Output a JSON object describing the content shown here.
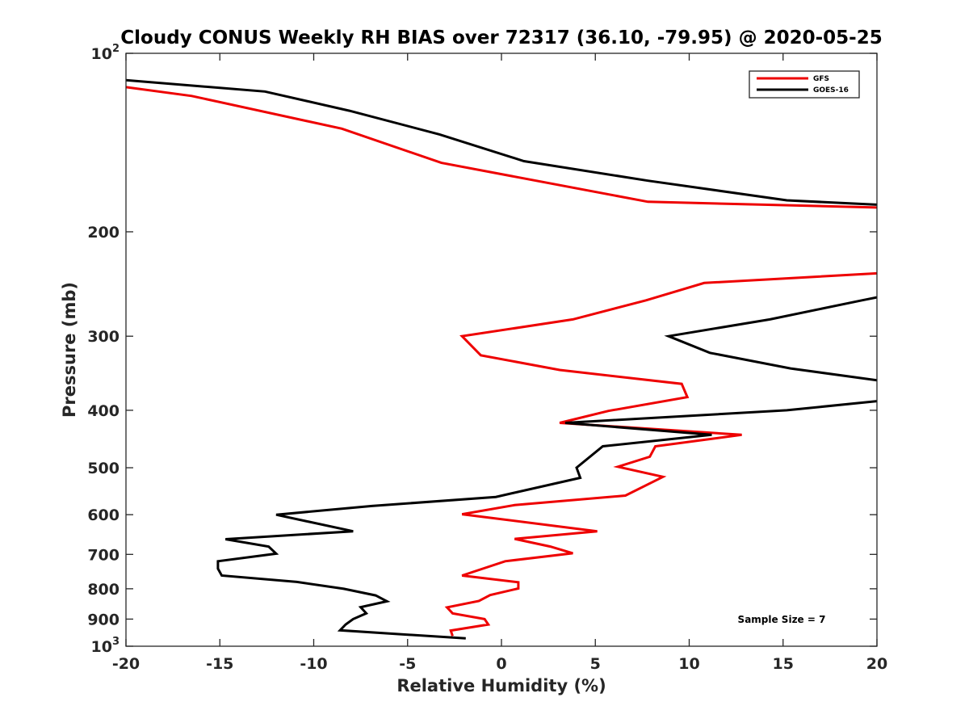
{
  "chart_data": {
    "type": "line",
    "title": "Cloudy CONUS Weekly RH BIAS over 72317 (36.10, -79.95) @ 2020-05-25",
    "xlabel": "Relative Humidity (%)",
    "ylabel": "Pressure (mb)",
    "xlim": [
      -20,
      20
    ],
    "ylim": [
      1000,
      100
    ],
    "yscale": "log",
    "y_reversed": true,
    "grid": false,
    "legend_position": "top-right",
    "x_ticks": [
      -20,
      -15,
      -10,
      -5,
      0,
      5,
      10,
      15,
      20
    ],
    "x_tick_labels": [
      "-20",
      "-15",
      "-10",
      "-5",
      "0",
      "5",
      "10",
      "15",
      "20"
    ],
    "y_ticks": [
      100,
      200,
      300,
      400,
      500,
      600,
      700,
      800,
      900,
      1000
    ],
    "y_tick_labels": [
      {
        "base": "10",
        "exp": "2"
      },
      {
        "base": "200",
        "exp": ""
      },
      {
        "base": "300",
        "exp": ""
      },
      {
        "base": "400",
        "exp": ""
      },
      {
        "base": "500",
        "exp": ""
      },
      {
        "base": "600",
        "exp": ""
      },
      {
        "base": "700",
        "exp": ""
      },
      {
        "base": "800",
        "exp": ""
      },
      {
        "base": "900",
        "exp": ""
      },
      {
        "base": "10",
        "exp": "3"
      }
    ],
    "annotation": "Sample Size = 7",
    "series": [
      {
        "name": "GFS",
        "color": "#ee0000",
        "segments": [
          [
            [
              -20,
              114
            ],
            [
              -16.5,
              118
            ],
            [
              -8.5,
              134
            ],
            [
              -3.2,
              153
            ],
            [
              7.8,
              178
            ],
            [
              20,
              182
            ]
          ],
          [
            [
              20,
              235
            ],
            [
              10.8,
              244
            ],
            [
              7.7,
              261
            ],
            [
              3.8,
              281
            ],
            [
              -2.1,
              300
            ],
            [
              -1.1,
              323
            ],
            [
              3.1,
              342
            ],
            [
              9.6,
              361
            ],
            [
              9.9,
              380
            ],
            [
              5.7,
              401
            ],
            [
              3.1,
              420
            ],
            [
              12.8,
              440
            ],
            [
              8.2,
              460
            ],
            [
              7.9,
              479
            ],
            [
              6.2,
              498
            ],
            [
              8.6,
              518
            ],
            [
              6.6,
              557
            ],
            [
              0.7,
              578
            ],
            [
              -2.1,
              599
            ],
            [
              5.1,
              640
            ],
            [
              0.7,
              659
            ],
            [
              2.6,
              679
            ],
            [
              3.8,
              697
            ],
            [
              0.2,
              719
            ],
            [
              -2.1,
              760
            ],
            [
              0.9,
              780
            ],
            [
              0.9,
              799
            ],
            [
              -0.6,
              820
            ],
            [
              -1.2,
              839
            ],
            [
              -2.9,
              860
            ],
            [
              -2.6,
              880
            ],
            [
              -0.9,
              900
            ],
            [
              -0.7,
              919
            ],
            [
              -2.7,
              941
            ],
            [
              -2.6,
              961
            ]
          ]
        ]
      },
      {
        "name": "GOES-16",
        "color": "#000000",
        "segments": [
          [
            [
              -20,
              111
            ],
            [
              -12.6,
              116
            ],
            [
              -8.1,
              125
            ],
            [
              -3.3,
              137
            ],
            [
              1.2,
              152
            ],
            [
              7.8,
              164
            ],
            [
              15.2,
              177
            ],
            [
              20,
              180
            ]
          ],
          [
            [
              20,
              258
            ],
            [
              19.2,
              261
            ],
            [
              14.3,
              281
            ],
            [
              8.9,
              300
            ],
            [
              11.1,
              320
            ],
            [
              15.4,
              340
            ],
            [
              20,
              356
            ]
          ],
          [
            [
              20,
              386
            ],
            [
              15.2,
              400
            ],
            [
              3.4,
              420
            ],
            [
              11.2,
              440
            ],
            [
              5.4,
              460
            ],
            [
              4.0,
              500
            ],
            [
              4.2,
              520
            ],
            [
              -0.3,
              560
            ],
            [
              -6.9,
              580
            ],
            [
              -12.0,
              600
            ],
            [
              -7.9,
              640
            ],
            [
              -14.7,
              660
            ],
            [
              -12.4,
              679
            ],
            [
              -12.0,
              698
            ],
            [
              -15.1,
              719
            ],
            [
              -15.1,
              740
            ],
            [
              -14.9,
              760
            ],
            [
              -10.9,
              779
            ],
            [
              -8.4,
              800
            ],
            [
              -6.7,
              821
            ],
            [
              -6.1,
              840
            ],
            [
              -7.5,
              859
            ],
            [
              -7.2,
              880
            ],
            [
              -7.9,
              900
            ],
            [
              -8.3,
              919
            ],
            [
              -8.6,
              940
            ],
            [
              -1.9,
              970
            ]
          ]
        ]
      }
    ]
  }
}
